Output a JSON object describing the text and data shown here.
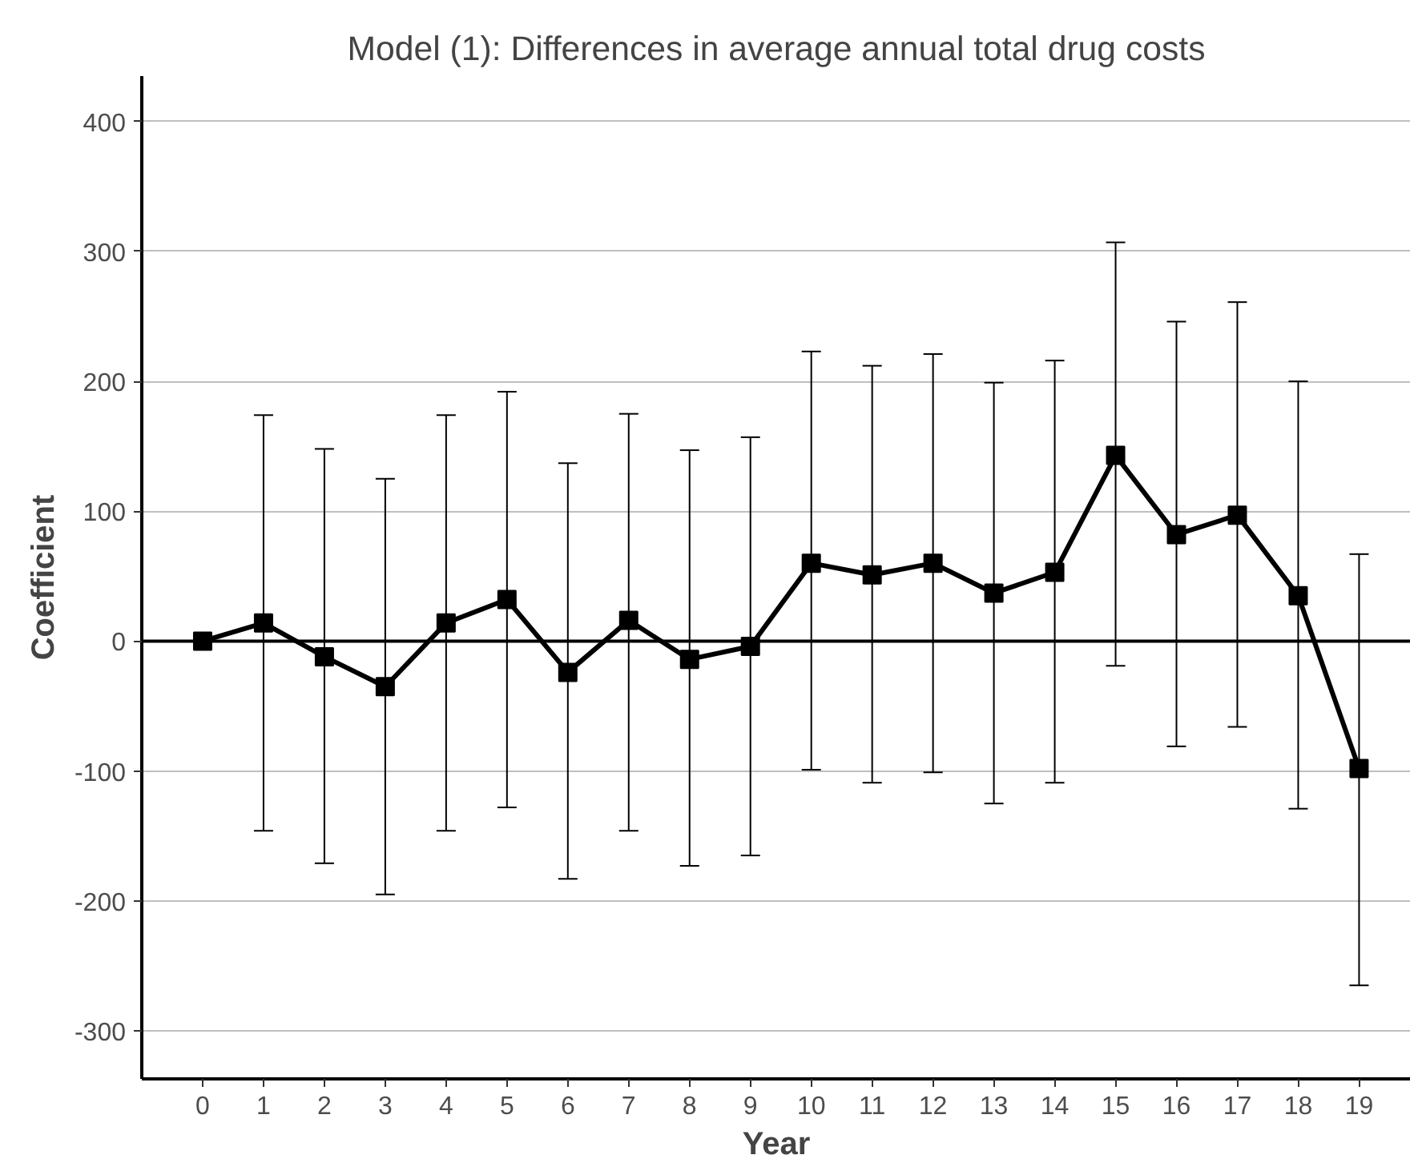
{
  "chart_data": {
    "type": "line",
    "title": "Model (1): Differences in average annual total drug costs",
    "xlabel": "Year",
    "ylabel": "Coefficient",
    "x": [
      0,
      1,
      2,
      3,
      4,
      5,
      6,
      7,
      8,
      9,
      10,
      11,
      12,
      13,
      14,
      15,
      16,
      17,
      18,
      19
    ],
    "series": [
      {
        "color": "#000000",
        "values": [
          0,
          14,
          -12,
          -35,
          14,
          32,
          -24,
          16,
          -14,
          -4,
          60,
          51,
          60,
          37,
          53,
          143,
          82,
          97,
          35,
          -98
        ],
        "errors": [
          null,
          [
            -146,
            174
          ],
          [
            -171,
            148
          ],
          [
            -195,
            125
          ],
          [
            -146,
            174
          ],
          [
            -128,
            192
          ],
          [
            -183,
            137
          ],
          [
            -146,
            175
          ],
          [
            -173,
            147
          ],
          [
            -165,
            157
          ],
          [
            -99,
            223
          ],
          [
            -109,
            212
          ],
          [
            -101,
            221
          ],
          [
            -125,
            199
          ],
          [
            -109,
            216
          ],
          [
            -19,
            307
          ],
          [
            -81,
            246
          ],
          [
            -66,
            261
          ],
          [
            -129,
            200
          ],
          [
            -265,
            67
          ]
        ]
      }
    ],
    "xlim": [
      -1,
      19.85
    ],
    "ylim": [
      -337,
      435
    ],
    "xticks": [
      0,
      1,
      2,
      3,
      4,
      5,
      6,
      7,
      8,
      9,
      10,
      11,
      12,
      13,
      14,
      15,
      16,
      17,
      18,
      19
    ],
    "yticks": [
      -300,
      -200,
      -100,
      0,
      100,
      200,
      300,
      400
    ],
    "ref_lines": [
      {
        "axis": "y",
        "value": 0,
        "color": "#000000"
      }
    ],
    "grid": "y",
    "marker": "square",
    "line_style": "solid"
  }
}
